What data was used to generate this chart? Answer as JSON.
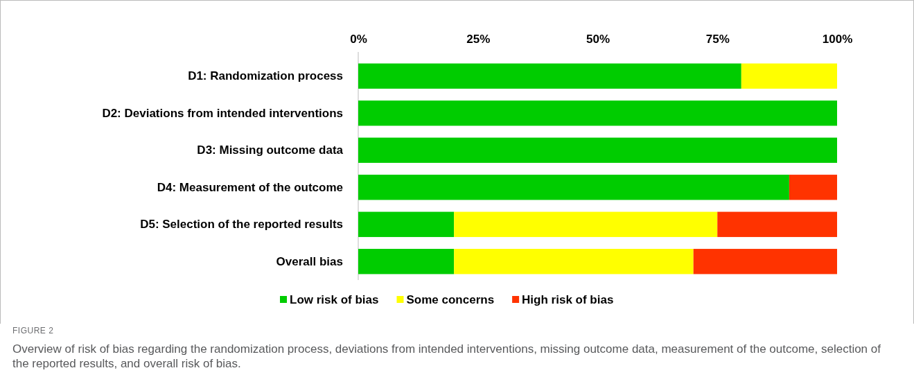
{
  "chart_data": {
    "type": "bar",
    "orientation": "horizontal",
    "stacked": true,
    "categories": [
      "D1: Randomization process",
      "D2: Deviations from intended interventions",
      "D3: Missing outcome data",
      "D4: Measurement of the outcome",
      "D5: Selection of the reported results",
      "Overall bias"
    ],
    "series": [
      {
        "name": "Low risk of bias",
        "color": "#00cc00",
        "values": [
          80,
          100,
          100,
          90,
          20,
          20
        ]
      },
      {
        "name": "Some concerns",
        "color": "#ffff00",
        "values": [
          20,
          0,
          0,
          0,
          55,
          50
        ]
      },
      {
        "name": "High risk of bias",
        "color": "#ff3300",
        "values": [
          0,
          0,
          0,
          10,
          25,
          30
        ]
      }
    ],
    "xlim": [
      0,
      100
    ],
    "xticks": [
      {
        "value": 0,
        "label": "0%"
      },
      {
        "value": 25,
        "label": "25%"
      },
      {
        "value": 50,
        "label": "50%"
      },
      {
        "value": 75,
        "label": "75%"
      },
      {
        "value": 100,
        "label": "100%"
      }
    ],
    "legend": "bottom",
    "grid": false,
    "annotations": [
      "FIGURE 2",
      "Overview of risk of bias regarding the randomization process, deviations from intended interventions, missing outcome data, measurement of the outcome, selection of the reported results, and overall risk of bias."
    ]
  }
}
